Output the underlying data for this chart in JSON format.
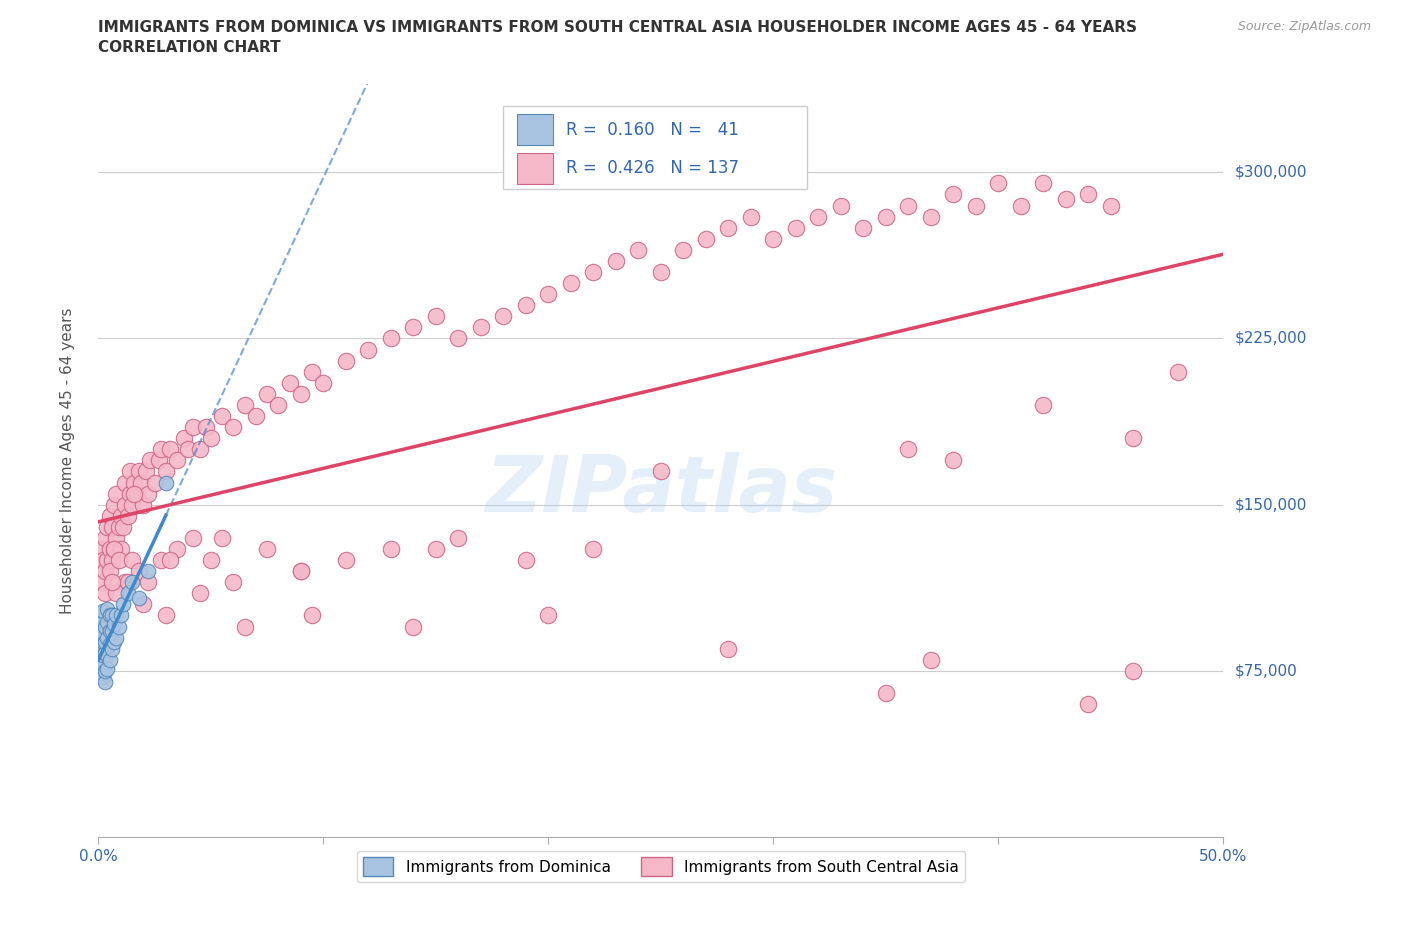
{
  "title_line1": "IMMIGRANTS FROM DOMINICA VS IMMIGRANTS FROM SOUTH CENTRAL ASIA HOUSEHOLDER INCOME AGES 45 - 64 YEARS",
  "title_line2": "CORRELATION CHART",
  "source": "Source: ZipAtlas.com",
  "ylabel": "Householder Income Ages 45 - 64 years",
  "xlim": [
    0.0,
    0.5
  ],
  "ylim": [
    0,
    340000
  ],
  "ytick_positions": [
    75000,
    150000,
    225000,
    300000
  ],
  "ytick_labels": [
    "$75,000",
    "$150,000",
    "$225,000",
    "$300,000"
  ],
  "dominica_color": "#a8c4e0",
  "dominica_edge_color": "#5588bb",
  "sca_color": "#f5b8c8",
  "sca_edge_color": "#cc6688",
  "trend_dominica_color": "#4488cc",
  "trend_sca_color": "#dd4466",
  "dominica_R": 0.16,
  "dominica_N": 41,
  "sca_R": 0.426,
  "sca_N": 137,
  "watermark": "ZIPatlas",
  "dominica_label": "Immigrants from Dominica",
  "sca_label": "Immigrants from South Central Asia",
  "dom_x": [
    0.001,
    0.001,
    0.001,
    0.001,
    0.001,
    0.002,
    0.002,
    0.002,
    0.002,
    0.002,
    0.002,
    0.002,
    0.003,
    0.003,
    0.003,
    0.003,
    0.003,
    0.004,
    0.004,
    0.004,
    0.004,
    0.004,
    0.005,
    0.005,
    0.005,
    0.005,
    0.006,
    0.006,
    0.006,
    0.007,
    0.007,
    0.008,
    0.008,
    0.009,
    0.01,
    0.011,
    0.013,
    0.015,
    0.018,
    0.022,
    0.03
  ],
  "dom_y": [
    75000,
    80000,
    85000,
    90000,
    95000,
    72000,
    78000,
    82000,
    88000,
    92000,
    97000,
    102000,
    70000,
    75000,
    83000,
    88000,
    95000,
    76000,
    82000,
    90000,
    97000,
    103000,
    80000,
    87000,
    93000,
    100000,
    85000,
    93000,
    100000,
    88000,
    96000,
    90000,
    100000,
    95000,
    100000,
    105000,
    110000,
    115000,
    108000,
    120000,
    160000
  ],
  "sca_x": [
    0.001,
    0.002,
    0.002,
    0.003,
    0.003,
    0.004,
    0.004,
    0.005,
    0.005,
    0.006,
    0.006,
    0.007,
    0.007,
    0.008,
    0.008,
    0.009,
    0.01,
    0.01,
    0.011,
    0.012,
    0.012,
    0.013,
    0.014,
    0.014,
    0.015,
    0.016,
    0.017,
    0.018,
    0.019,
    0.02,
    0.021,
    0.022,
    0.023,
    0.025,
    0.027,
    0.028,
    0.03,
    0.032,
    0.035,
    0.038,
    0.04,
    0.042,
    0.045,
    0.048,
    0.05,
    0.055,
    0.06,
    0.065,
    0.07,
    0.075,
    0.08,
    0.085,
    0.09,
    0.095,
    0.1,
    0.11,
    0.12,
    0.13,
    0.14,
    0.15,
    0.16,
    0.17,
    0.18,
    0.19,
    0.2,
    0.21,
    0.22,
    0.23,
    0.24,
    0.25,
    0.26,
    0.27,
    0.28,
    0.29,
    0.3,
    0.31,
    0.32,
    0.33,
    0.34,
    0.35,
    0.36,
    0.37,
    0.38,
    0.39,
    0.4,
    0.41,
    0.42,
    0.43,
    0.44,
    0.45,
    0.003,
    0.005,
    0.007,
    0.009,
    0.012,
    0.015,
    0.018,
    0.022,
    0.028,
    0.035,
    0.042,
    0.05,
    0.06,
    0.075,
    0.09,
    0.11,
    0.13,
    0.16,
    0.19,
    0.22,
    0.004,
    0.008,
    0.013,
    0.02,
    0.03,
    0.045,
    0.065,
    0.095,
    0.14,
    0.2,
    0.28,
    0.37,
    0.46,
    0.006,
    0.016,
    0.032,
    0.055,
    0.09,
    0.15,
    0.25,
    0.38,
    0.46,
    0.36,
    0.42,
    0.48,
    0.35,
    0.44
  ],
  "sca_y": [
    130000,
    115000,
    125000,
    120000,
    135000,
    125000,
    140000,
    130000,
    145000,
    125000,
    140000,
    130000,
    150000,
    135000,
    155000,
    140000,
    130000,
    145000,
    140000,
    150000,
    160000,
    145000,
    155000,
    165000,
    150000,
    160000,
    155000,
    165000,
    160000,
    150000,
    165000,
    155000,
    170000,
    160000,
    170000,
    175000,
    165000,
    175000,
    170000,
    180000,
    175000,
    185000,
    175000,
    185000,
    180000,
    190000,
    185000,
    195000,
    190000,
    200000,
    195000,
    205000,
    200000,
    210000,
    205000,
    215000,
    220000,
    225000,
    230000,
    235000,
    225000,
    230000,
    235000,
    240000,
    245000,
    250000,
    255000,
    260000,
    265000,
    255000,
    265000,
    270000,
    275000,
    280000,
    270000,
    275000,
    280000,
    285000,
    275000,
    280000,
    285000,
    280000,
    290000,
    285000,
    295000,
    285000,
    295000,
    288000,
    290000,
    285000,
    110000,
    120000,
    130000,
    125000,
    115000,
    125000,
    120000,
    115000,
    125000,
    130000,
    135000,
    125000,
    115000,
    130000,
    120000,
    125000,
    130000,
    135000,
    125000,
    130000,
    100000,
    110000,
    115000,
    105000,
    100000,
    110000,
    95000,
    100000,
    95000,
    100000,
    85000,
    80000,
    75000,
    115000,
    155000,
    125000,
    135000,
    120000,
    130000,
    165000,
    170000,
    180000,
    175000,
    195000,
    210000,
    65000,
    60000
  ]
}
